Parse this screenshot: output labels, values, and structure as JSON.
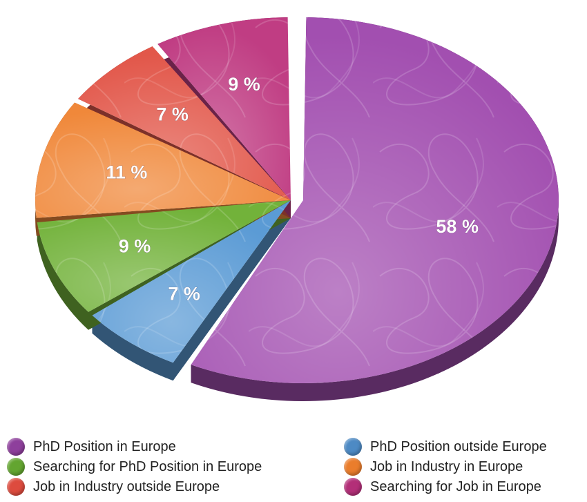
{
  "chart_data": {
    "type": "pie",
    "title": "",
    "labels": [
      "PhD Position in Europe",
      "PhD Position outside Europe",
      "Searching for PhD Position in Europe",
      "Job in Industry in Europe",
      "Job in Industry outside Europe",
      "Searching for Job in Europe"
    ],
    "values": [
      58,
      7,
      9,
      11,
      7,
      9
    ],
    "value_labels": [
      "58 %",
      "7 %",
      "9 %",
      "11 %",
      "7 %",
      "9 %"
    ],
    "colors": [
      "#a24fb0",
      "#5b9bd5",
      "#72b23a",
      "#f0883a",
      "#e2574a",
      "#c03d83"
    ],
    "legend_position": "bottom",
    "exploded": true,
    "style": "3d"
  },
  "legend": [
    {
      "label": "PhD Position in Europe",
      "color": "#8e3f9c"
    },
    {
      "label": "PhD Position outside Europe",
      "color": "#4d8ac4"
    },
    {
      "label": "Searching for PhD Position in Europe",
      "color": "#63a530"
    },
    {
      "label": "Job in Industry in Europe",
      "color": "#ea7d2c"
    },
    {
      "label": "Job in Industry outside Europe",
      "color": "#dd4b3e"
    },
    {
      "label": "Searching for Job in Europe",
      "color": "#b32f78"
    }
  ]
}
